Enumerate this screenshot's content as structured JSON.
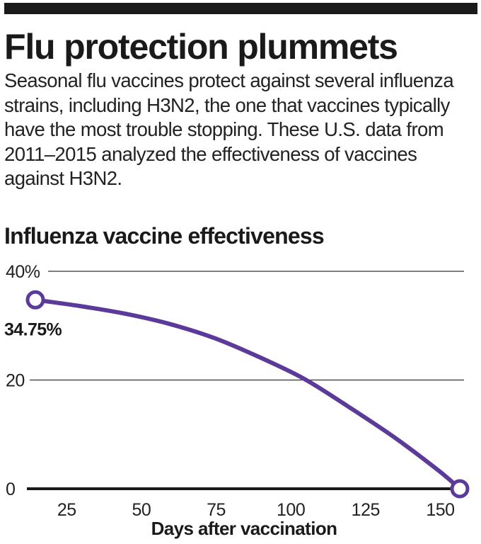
{
  "header": {
    "title": "Flu protection plummets",
    "description": "Seasonal flu vaccines protect against several influenza strains, including H3N2, the one that vaccines typically have the most trouble stopping. These U.S. data from 2011–2015 analyzed the effectiveness of vaccines against H3N2."
  },
  "colors": {
    "series": "#5b3a9a",
    "text": "#1a1a1a",
    "grid": "#333333"
  },
  "chart_data": {
    "type": "line",
    "title": "Influenza vaccine effectiveness",
    "xlabel": "Days after vaccination",
    "ylabel": "",
    "xlim": [
      15,
      158
    ],
    "ylim": [
      0,
      40
    ],
    "xticks": [
      25,
      50,
      75,
      100,
      125,
      150
    ],
    "yticks": [
      {
        "value": 40,
        "label": "40%"
      },
      {
        "value": 20,
        "label": "20"
      },
      {
        "value": 0,
        "label": "0"
      }
    ],
    "grid": true,
    "series": [
      {
        "x": [
          15,
          30,
          45,
          60,
          75,
          90,
          105,
          120,
          135,
          150,
          157
        ],
        "y": [
          34.75,
          33.6,
          32.2,
          30.3,
          27.7,
          24.2,
          20.2,
          15.0,
          9.5,
          3.3,
          0
        ]
      }
    ],
    "annotations": [
      {
        "x": 15,
        "y": 34.75,
        "text": "34.75%"
      }
    ]
  }
}
